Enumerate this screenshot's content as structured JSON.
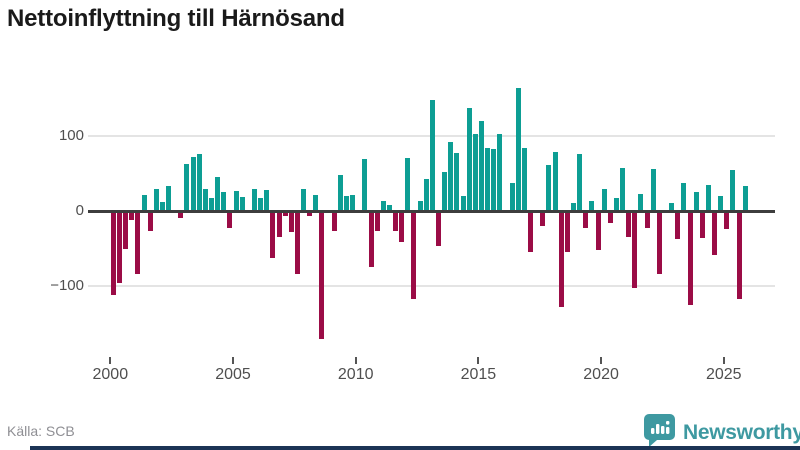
{
  "title": "Nettoinflyttning till Härnösand",
  "source": "Källa: SCB",
  "branding": {
    "name": "Newsworthy",
    "logo_icon": "bar-chart-speech-bubble-icon"
  },
  "colors": {
    "positive_bar": "#0d9e94",
    "negative_bar": "#9b0c46",
    "title_text": "#1a1a1a",
    "axis_line": "#3d3d3d",
    "gridline": "#e4e4e4",
    "tick_text": "#4f4f4f",
    "source_text": "#8f8f94",
    "brand_teal": "#3e99a1",
    "footer_navy": "#1c3455"
  },
  "chart_data": {
    "type": "bar",
    "title": "Nettoinflyttning till Härnösand",
    "x_period": "quarterly",
    "x_start": "2000 Q1",
    "x_end": "2025 Q4",
    "x_tick_years": [
      2000,
      2005,
      2010,
      2015,
      2020,
      2025
    ],
    "y_ticks": [
      100,
      0,
      -100
    ],
    "ylim": [
      -190,
      190
    ],
    "grid": "horizontal",
    "legend": "none",
    "series": [
      {
        "name": "Nettoinflyttning",
        "values": [
          -111,
          -95,
          -50,
          -11,
          -83,
          21,
          -26,
          29,
          12,
          33,
          0,
          -8,
          63,
          73,
          76,
          29,
          17,
          45,
          26,
          -21,
          27,
          19,
          0,
          30,
          18,
          28,
          -61,
          -33,
          -5,
          -27,
          -83,
          29,
          -6,
          21,
          -170,
          0,
          -25,
          48,
          20,
          21,
          0,
          70,
          -74,
          -26,
          14,
          8,
          -26,
          -40,
          71,
          -116,
          13,
          43,
          149,
          -45,
          52,
          92,
          78,
          20,
          138,
          103,
          121,
          85,
          83,
          103,
          0,
          38,
          165,
          85,
          -54,
          0,
          -19,
          61,
          79,
          -127,
          -54,
          11,
          77,
          -21,
          14,
          -51,
          30,
          -15,
          17,
          58,
          -33,
          -102,
          23,
          -22,
          56,
          -83,
          0,
          11,
          -36,
          38,
          -124,
          25,
          -35,
          35,
          -57,
          20,
          -23,
          55,
          -116,
          33
        ]
      }
    ]
  }
}
